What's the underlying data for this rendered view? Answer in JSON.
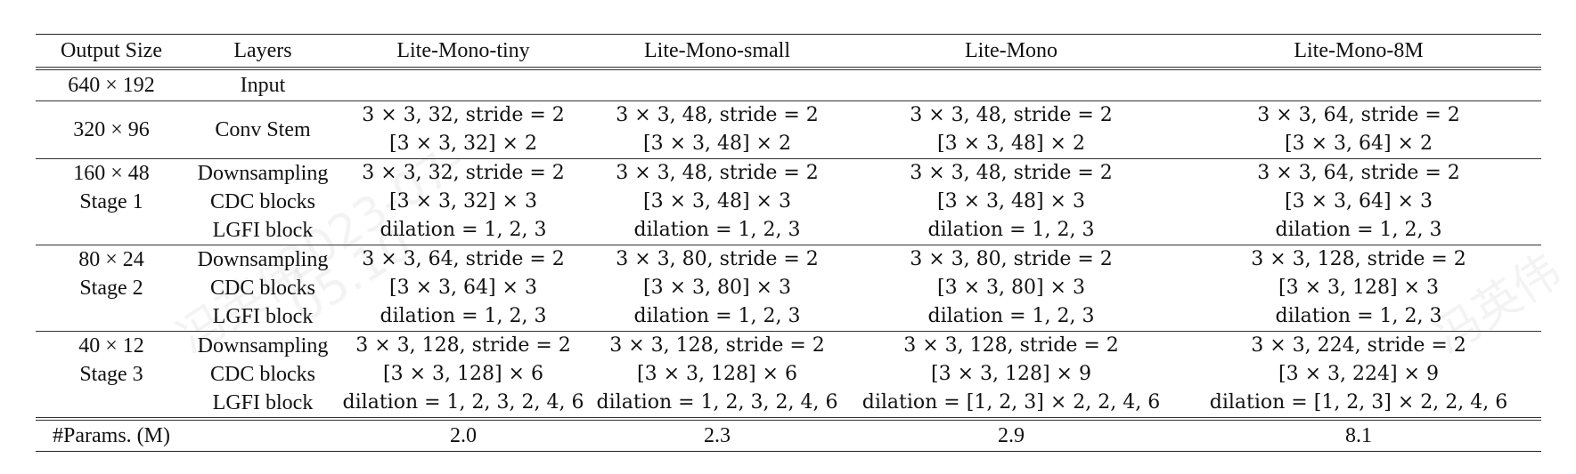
{
  "header": [
    "Output Size",
    "Layers",
    "Lite-Mono-tiny",
    "Lite-Mono-small",
    "Lite-Mono",
    "Lite-Mono-8M"
  ],
  "input_row": {
    "size": "640 × 192",
    "layer": "Input"
  },
  "stem": {
    "size": "320 × 96",
    "layer": "Conv Stem",
    "cells": [
      [
        "3 × 3, 32, stride = 2",
        "[3 × 3, 32] × 2"
      ],
      [
        "3 × 3, 48, stride = 2",
        "[3 × 3, 48] × 2"
      ],
      [
        "3 × 3, 48, stride = 2",
        "[3 × 3, 48] × 2"
      ],
      [
        "3 × 3, 64, stride = 2",
        "[3 × 3, 64] × 2"
      ]
    ]
  },
  "stages": [
    {
      "size": "160 × 48",
      "name": "Stage 1",
      "layers": [
        "Downsampling",
        "CDC blocks",
        "LGFI block"
      ],
      "cells": [
        [
          "3 × 3, 32, stride = 2",
          "[3 × 3, 32] × 3",
          "dilation = 1, 2, 3"
        ],
        [
          "3 × 3, 48, stride = 2",
          "[3 × 3, 48] × 3",
          "dilation = 1, 2, 3"
        ],
        [
          "3 × 3, 48, stride = 2",
          "[3 × 3, 48] × 3",
          "dilation = 1, 2, 3"
        ],
        [
          "3 × 3, 64, stride = 2",
          "[3 × 3, 64] × 3",
          "dilation = 1, 2, 3"
        ]
      ]
    },
    {
      "size": "80 × 24",
      "name": "Stage 2",
      "layers": [
        "Downsampling",
        "CDC blocks",
        "LGFI block"
      ],
      "cells": [
        [
          "3 × 3, 64, stride = 2",
          "[3 × 3, 64] × 3",
          "dilation = 1, 2, 3"
        ],
        [
          "3 × 3, 80, stride = 2",
          "[3 × 3, 80] × 3",
          "dilation = 1, 2, 3"
        ],
        [
          "3 × 3, 80, stride = 2",
          "[3 × 3, 80] × 3",
          "dilation = 1, 2, 3"
        ],
        [
          "3 × 3, 128, stride = 2",
          "[3 × 3, 128] × 3",
          "dilation = 1, 2, 3"
        ]
      ]
    },
    {
      "size": "40 × 12",
      "name": "Stage 3",
      "layers": [
        "Downsampling",
        "CDC blocks",
        "LGFI block"
      ],
      "cells": [
        [
          "3 × 3, 128, stride = 2",
          "[3 × 3, 128] × 6",
          "dilation = 1, 2, 3, 2, 4, 6"
        ],
        [
          "3 × 3, 128, stride = 2",
          "[3 × 3, 128] × 6",
          "dilation = 1, 2, 3, 2, 4, 6"
        ],
        [
          "3 × 3, 128, stride = 2",
          "[3 × 3, 128] × 9",
          "dilation = [1, 2, 3] × 2, 2, 4, 6"
        ],
        [
          "3 × 3, 224, stride = 2",
          "[3 × 3, 224] × 9",
          "dilation = [1, 2, 3] × 2, 2, 4, 6"
        ]
      ]
    }
  ],
  "params": {
    "label": "#Params. (M)",
    "values": [
      "2.0",
      "2.3",
      "2.9",
      "8.1"
    ]
  },
  "watermark": [
    "冯英伟",
    "2023-07-",
    "05.10"
  ]
}
